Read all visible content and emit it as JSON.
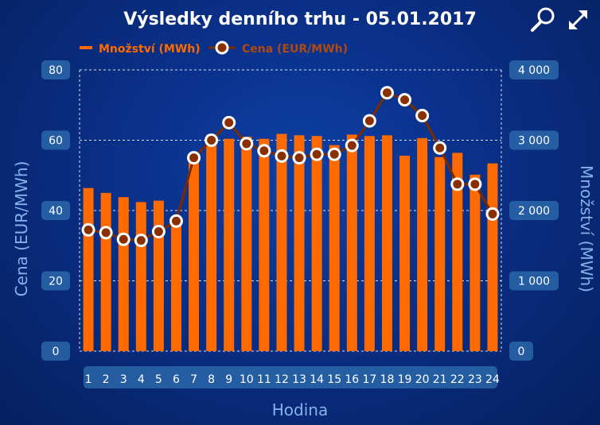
{
  "toolbar": {
    "zoom_icon": "magnifier-icon",
    "fullscreen_icon": "expand-arrows-icon"
  },
  "colors": {
    "bar": "#ff6a00",
    "line": "#7a2a00",
    "marker_fill": "#8a3000",
    "marker_stroke": "#ffffff",
    "legend_price": "#ff6a00",
    "grid": "#ffffff",
    "tick_bg": "#2f6fb0",
    "axis_title": "#86b2ea"
  },
  "chart_data": {
    "type": "bar",
    "title": "Výsledky denního trhu - 05.01.2017",
    "xlabel": "Hodina",
    "ylabel_left": "Cena (EUR/MWh)",
    "ylabel_right": "Množství (MWh)",
    "legend_position": "top-left",
    "grid": true,
    "categories": [
      "1",
      "2",
      "3",
      "4",
      "5",
      "6",
      "7",
      "8",
      "9",
      "10",
      "11",
      "12",
      "13",
      "14",
      "15",
      "16",
      "17",
      "18",
      "19",
      "20",
      "21",
      "22",
      "23",
      "24"
    ],
    "y_left": {
      "min": 0,
      "max": 80,
      "ticks": [
        "0",
        "20",
        "40",
        "60",
        "80"
      ],
      "tick_values": [
        0,
        20,
        40,
        60,
        80
      ]
    },
    "y_right": {
      "min": 0,
      "max": 4000,
      "ticks": [
        "0",
        "1 000",
        "2 000",
        "3 000",
        "4 000"
      ],
      "tick_values": [
        0,
        1000,
        2000,
        3000,
        4000
      ]
    },
    "series": [
      {
        "name": "Množství (MWh)",
        "kind": "bar",
        "axis": "right",
        "values": [
          2320,
          2250,
          2190,
          2120,
          2140,
          1870,
          2720,
          3080,
          3020,
          3050,
          3020,
          3090,
          3070,
          3060,
          2930,
          3080,
          3060,
          3070,
          2780,
          3030,
          2760,
          2820,
          2510,
          2670
        ]
      },
      {
        "name": "Cena (EUR/MWh)",
        "kind": "line",
        "axis": "left",
        "values": [
          34.5,
          33.7,
          31.8,
          31.5,
          34.0,
          37.0,
          55.0,
          60.0,
          65.0,
          59.0,
          57.0,
          55.5,
          55.0,
          56.0,
          56.0,
          58.5,
          65.5,
          73.5,
          71.5,
          67.0,
          57.8,
          47.5,
          47.5,
          39.0
        ]
      }
    ]
  }
}
